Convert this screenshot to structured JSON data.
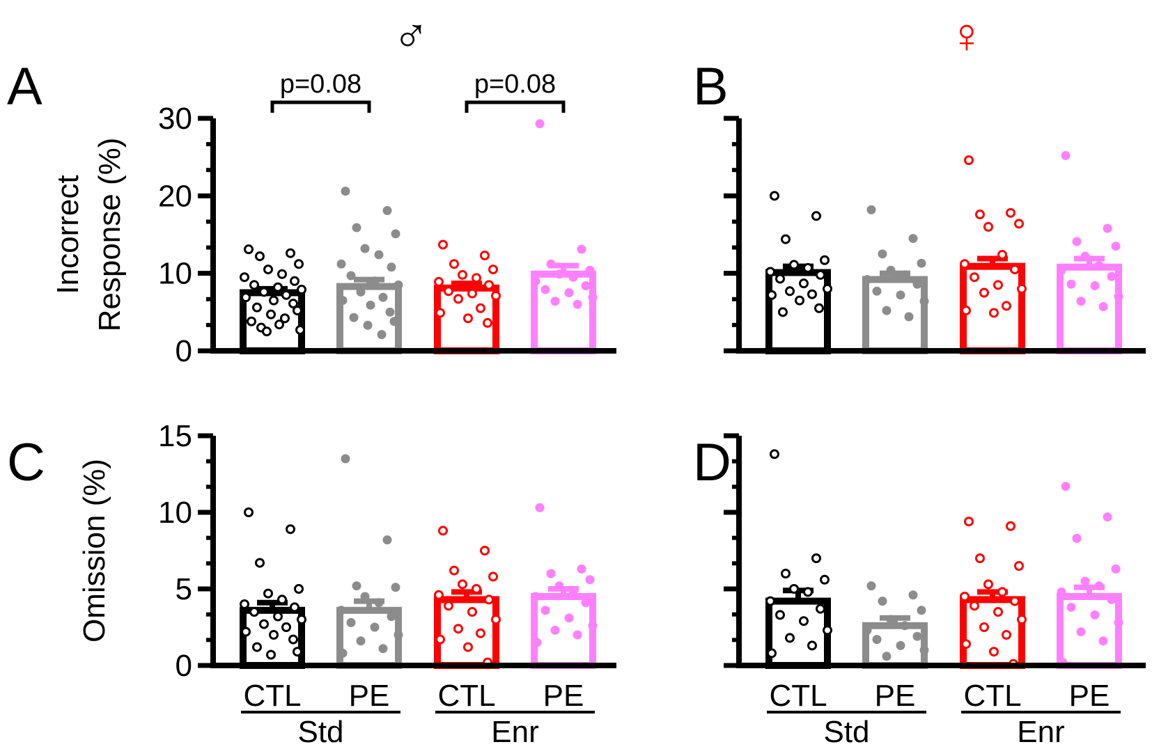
{
  "figure": {
    "sex_labels": {
      "male": "♂",
      "female": "♀"
    },
    "colors": {
      "CTL_Std": "#000000",
      "PE_Std": "#8c8c8c",
      "CTL_Enr": "#ff0000",
      "PE_Enr": "#ff80ff",
      "female_symbol": "#ff0000"
    },
    "x_groups": {
      "bars": [
        "CTL",
        "PE",
        "CTL",
        "PE"
      ],
      "environments": [
        "Std",
        "Enr"
      ]
    }
  },
  "chart_data": [
    {
      "panel": "A",
      "type": "bar",
      "ylabel": [
        "Incorrect",
        "Response (%)"
      ],
      "ylim": [
        0,
        30
      ],
      "yticks": [
        0,
        10,
        20,
        30
      ],
      "annotations": [
        {
          "text": "p=0.08",
          "between": [
            0,
            1
          ]
        },
        {
          "text": "p=0.08",
          "between": [
            2,
            3
          ]
        }
      ],
      "series": [
        {
          "group": "CTL",
          "env": "Std",
          "mean": 7.5,
          "sem": 0.5,
          "points": [
            13.1,
            12.6,
            12.2,
            11.2,
            10.5,
            9.9,
            9.5,
            9.0,
            8.5,
            8.2,
            7.9,
            7.6,
            7.2,
            6.9,
            6.5,
            6.1,
            5.6,
            5.2,
            4.7,
            4.2,
            3.8,
            3.4,
            3.0,
            2.7,
            2.5
          ]
        },
        {
          "group": "PE",
          "env": "Std",
          "mean": 8.3,
          "sem": 0.9,
          "points": [
            20.6,
            18.1,
            15.9,
            15.1,
            13.2,
            12.4,
            11.2,
            10.8,
            9.7,
            9.0,
            8.5,
            7.6,
            6.9,
            6.5,
            5.9,
            5.0,
            4.3,
            3.8,
            3.3,
            2.1
          ]
        },
        {
          "group": "CTL",
          "env": "Enr",
          "mean": 8.1,
          "sem": 0.6,
          "points": [
            13.7,
            12.3,
            11.2,
            10.5,
            9.8,
            9.4,
            8.9,
            8.5,
            7.7,
            7.4,
            7.1,
            6.7,
            5.5,
            4.9,
            4.2,
            3.6
          ]
        },
        {
          "group": "PE",
          "env": "Enr",
          "mean": 9.9,
          "sem": 1.1,
          "points": [
            29.3,
            13.1,
            11.2,
            10.4,
            9.9,
            9.5,
            9.0,
            8.4,
            7.9,
            7.5,
            6.9,
            6.4,
            6.0
          ]
        }
      ]
    },
    {
      "panel": "B",
      "type": "bar",
      "ylim": [
        0,
        30
      ],
      "yticks": [
        0,
        10,
        20,
        30
      ],
      "series": [
        {
          "group": "CTL",
          "env": "Std",
          "mean": 10.1,
          "sem": 0.8,
          "points": [
            20.0,
            17.4,
            14.4,
            11.7,
            11.1,
            10.7,
            10.2,
            9.8,
            9.3,
            8.7,
            8.0,
            7.7,
            7.3,
            7.2,
            6.5,
            5.5,
            5.0
          ]
        },
        {
          "group": "PE",
          "env": "Std",
          "mean": 9.2,
          "sem": 0.8,
          "points": [
            18.2,
            14.5,
            12.5,
            11.3,
            10.4,
            9.8,
            9.2,
            8.6,
            7.7,
            7.2,
            6.4,
            5.2,
            4.4
          ]
        },
        {
          "group": "CTL",
          "env": "Enr",
          "mean": 10.9,
          "sem": 1.0,
          "points": [
            24.6,
            17.8,
            17.6,
            16.4,
            16.0,
            12.4,
            11.2,
            10.5,
            9.5,
            8.5,
            8.0,
            7.5,
            5.8,
            5.2,
            4.9
          ]
        },
        {
          "group": "PE",
          "env": "Enr",
          "mean": 10.8,
          "sem": 1.1,
          "points": [
            25.2,
            15.8,
            14.1,
            13.5,
            12.2,
            11.0,
            10.4,
            9.6,
            8.6,
            8.4,
            7.0,
            6.4,
            5.7
          ]
        }
      ]
    },
    {
      "panel": "C",
      "type": "bar",
      "ylabel": [
        "Omission (%)"
      ],
      "ylim": [
        0,
        15
      ],
      "yticks": [
        0,
        5,
        10,
        15
      ],
      "series": [
        {
          "group": "CTL",
          "env": "Std",
          "mean": 3.6,
          "sem": 0.5,
          "points": [
            10.0,
            8.9,
            6.7,
            5.0,
            4.7,
            4.3,
            4.0,
            3.8,
            3.5,
            3.2,
            3.0,
            2.7,
            2.5,
            2.2,
            2.0,
            1.7,
            1.2,
            0.9,
            0.7
          ]
        },
        {
          "group": "PE",
          "env": "Std",
          "mean": 3.6,
          "sem": 0.6,
          "points": [
            13.5,
            8.2,
            5.2,
            5.1,
            4.5,
            4.1,
            3.6,
            3.2,
            2.8,
            2.5,
            2.0,
            1.6,
            1.1,
            0.8
          ]
        },
        {
          "group": "CTL",
          "env": "Enr",
          "mean": 4.3,
          "sem": 0.5,
          "points": [
            8.8,
            7.5,
            6.2,
            5.8,
            5.3,
            5.0,
            4.6,
            4.3,
            3.9,
            3.5,
            3.0,
            2.4,
            2.1,
            1.7,
            1.2,
            0.2
          ]
        },
        {
          "group": "PE",
          "env": "Enr",
          "mean": 4.5,
          "sem": 0.5,
          "points": [
            10.3,
            6.3,
            6.0,
            5.6,
            5.2,
            4.8,
            4.5,
            4.1,
            3.6,
            3.1,
            2.6,
            2.3,
            2.0,
            1.5
          ]
        }
      ]
    },
    {
      "panel": "D",
      "type": "bar",
      "ylim": [
        0,
        15
      ],
      "yticks": [
        0,
        5,
        10,
        15
      ],
      "series": [
        {
          "group": "CTL",
          "env": "Std",
          "mean": 4.2,
          "sem": 0.7,
          "points": [
            13.8,
            7.0,
            6.0,
            5.6,
            5.0,
            4.8,
            4.2,
            3.7,
            3.3,
            2.9,
            2.3,
            1.8,
            1.3,
            0.8
          ]
        },
        {
          "group": "PE",
          "env": "Std",
          "mean": 2.6,
          "sem": 0.5,
          "points": [
            5.2,
            4.6,
            4.2,
            3.6,
            3.0,
            2.6,
            2.3,
            1.9,
            1.7,
            1.3,
            1.0,
            0.6
          ]
        },
        {
          "group": "CTL",
          "env": "Enr",
          "mean": 4.3,
          "sem": 0.5,
          "points": [
            9.4,
            9.1,
            7.0,
            6.5,
            5.3,
            4.8,
            4.5,
            4.2,
            3.9,
            3.5,
            3.0,
            2.5,
            2.0,
            1.4,
            0.9,
            0.1
          ]
        },
        {
          "group": "PE",
          "env": "Enr",
          "mean": 4.5,
          "sem": 0.6,
          "points": [
            11.7,
            9.7,
            8.3,
            6.3,
            5.5,
            5.2,
            4.8,
            4.3,
            3.8,
            3.3,
            2.8,
            2.2,
            1.6,
            0.2
          ]
        }
      ]
    }
  ]
}
